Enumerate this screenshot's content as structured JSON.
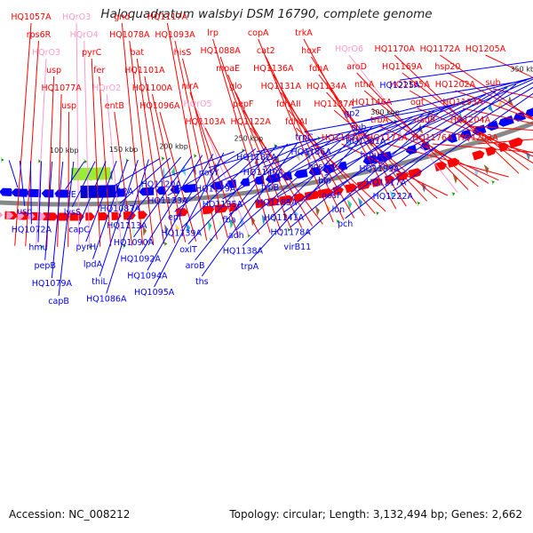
{
  "title": "Haloquadratum walsbyi DSM 16790, complete genome",
  "footer": {
    "accession": "Accession: NC_008212",
    "topology": "Topology: circular; Length: 3,132,494 bp; Genes: 2,662"
  },
  "ticks": [
    "100 kbp",
    "150 kbp",
    "200 kbp",
    "250 kbp",
    "300 kbp",
    "350 kbp"
  ],
  "colors": {
    "forward": "#ff0000",
    "reverse": "#0000ff",
    "rna": "#ff99cc",
    "backbone": "#888888",
    "green_marker": "#009900"
  },
  "forward_labels": [
    {
      "text": "HQ1057A",
      "tone": "red"
    },
    {
      "text": "rps6R",
      "tone": "red"
    },
    {
      "text": "HQrO3",
      "tone": "pink"
    },
    {
      "text": "usp",
      "tone": "red"
    },
    {
      "text": "HQ1077A",
      "tone": "red"
    },
    {
      "text": "usp",
      "tone": "red"
    },
    {
      "text": "HQrO3",
      "tone": "pink"
    },
    {
      "text": "HQrO4",
      "tone": "pink"
    },
    {
      "text": "pyrC",
      "tone": "red"
    },
    {
      "text": "fer",
      "tone": "red"
    },
    {
      "text": "HQrO2",
      "tone": "pink"
    },
    {
      "text": "entB",
      "tone": "red"
    },
    {
      "text": "gnd",
      "tone": "red"
    },
    {
      "text": "HQ1078A",
      "tone": "red"
    },
    {
      "text": "bat",
      "tone": "red"
    },
    {
      "text": "HQ1101A",
      "tone": "red"
    },
    {
      "text": "HQ1100A",
      "tone": "red"
    },
    {
      "text": "HQ1096A",
      "tone": "red"
    },
    {
      "text": "HQ1117A",
      "tone": "red"
    },
    {
      "text": "HQ1093A",
      "tone": "red"
    },
    {
      "text": "hisS",
      "tone": "red"
    },
    {
      "text": "nirA",
      "tone": "red"
    },
    {
      "text": "HQrO5",
      "tone": "pink"
    },
    {
      "text": "HQ1103A",
      "tone": "red"
    },
    {
      "text": "lrp",
      "tone": "red"
    },
    {
      "text": "HQ1088A",
      "tone": "red"
    },
    {
      "text": "moaE",
      "tone": "red"
    },
    {
      "text": "glo",
      "tone": "red"
    },
    {
      "text": "pepF",
      "tone": "red"
    },
    {
      "text": "HQ1122A",
      "tone": "red"
    },
    {
      "text": "copA",
      "tone": "red"
    },
    {
      "text": "cat2",
      "tone": "red"
    },
    {
      "text": "HQ1136A",
      "tone": "red"
    },
    {
      "text": "HQ1131A",
      "tone": "red"
    },
    {
      "text": "fdhAII",
      "tone": "red"
    },
    {
      "text": "fdhAI",
      "tone": "red"
    },
    {
      "text": "trkA",
      "tone": "red"
    },
    {
      "text": "hoxF",
      "tone": "red"
    },
    {
      "text": "fdhA",
      "tone": "red"
    },
    {
      "text": "HQ1134A",
      "tone": "red"
    },
    {
      "text": "HQ1137A",
      "tone": "red"
    },
    {
      "text": "HQ1142A",
      "tone": "red"
    },
    {
      "text": "HQrO6",
      "tone": "pink"
    },
    {
      "text": "aroD",
      "tone": "red"
    },
    {
      "text": "nthA",
      "tone": "red"
    },
    {
      "text": "HQ1146A",
      "tone": "red"
    },
    {
      "text": "trbA",
      "tone": "red"
    },
    {
      "text": "HQ1171A",
      "tone": "red"
    },
    {
      "text": "HQ1170A",
      "tone": "red"
    },
    {
      "text": "HQ1169A",
      "tone": "red"
    },
    {
      "text": "HQ1165A",
      "tone": "red"
    },
    {
      "text": "ogt",
      "tone": "red"
    },
    {
      "text": "nadR",
      "tone": "red"
    },
    {
      "text": "HQ1176A",
      "tone": "red"
    },
    {
      "text": "HQ1172A",
      "tone": "red"
    },
    {
      "text": "hsp20",
      "tone": "red"
    },
    {
      "text": "HQ1202A",
      "tone": "red"
    },
    {
      "text": "HQ1193A",
      "tone": "red"
    },
    {
      "text": "HQ1204A",
      "tone": "red"
    },
    {
      "text": "HQ1203A",
      "tone": "red"
    },
    {
      "text": "HQ1205A",
      "tone": "red"
    },
    {
      "text": "sub",
      "tone": "red"
    }
  ],
  "reverse_labels": [
    "kch",
    "usp",
    "HQ1072A",
    "hmu",
    "pepB",
    "HQ1079A",
    "capB",
    "nadE",
    "lysS",
    "capC",
    "pyrH",
    "lpdA",
    "thiL",
    "HQ1086A",
    "HQ1112A",
    "HQ1087A",
    "HQ1113A",
    "HQ1090A",
    "HQ1092A",
    "HQ1094A",
    "HQ1095A",
    "HQ1120A",
    "HQ1133A",
    "epf",
    "HQ1139A",
    "oxlT",
    "aroB",
    "ths",
    "nosY",
    "HQ1179A",
    "HQ1135A",
    "fba",
    "adh",
    "HQ1138A",
    "trpA",
    "HQ1182A",
    "HQ1140A",
    "trpB",
    "HQ1185A",
    "HQ1141A",
    "HQ1178A",
    "virB11",
    "trpC",
    "HQ1186A",
    "nosY",
    "blp",
    "nosF",
    "lon",
    "pch",
    "gp2",
    "sub",
    "HQ1201A",
    "hmu2",
    "HQ1199A",
    "HQ1217A",
    "HQ1222A",
    "HQ1225A"
  ]
}
